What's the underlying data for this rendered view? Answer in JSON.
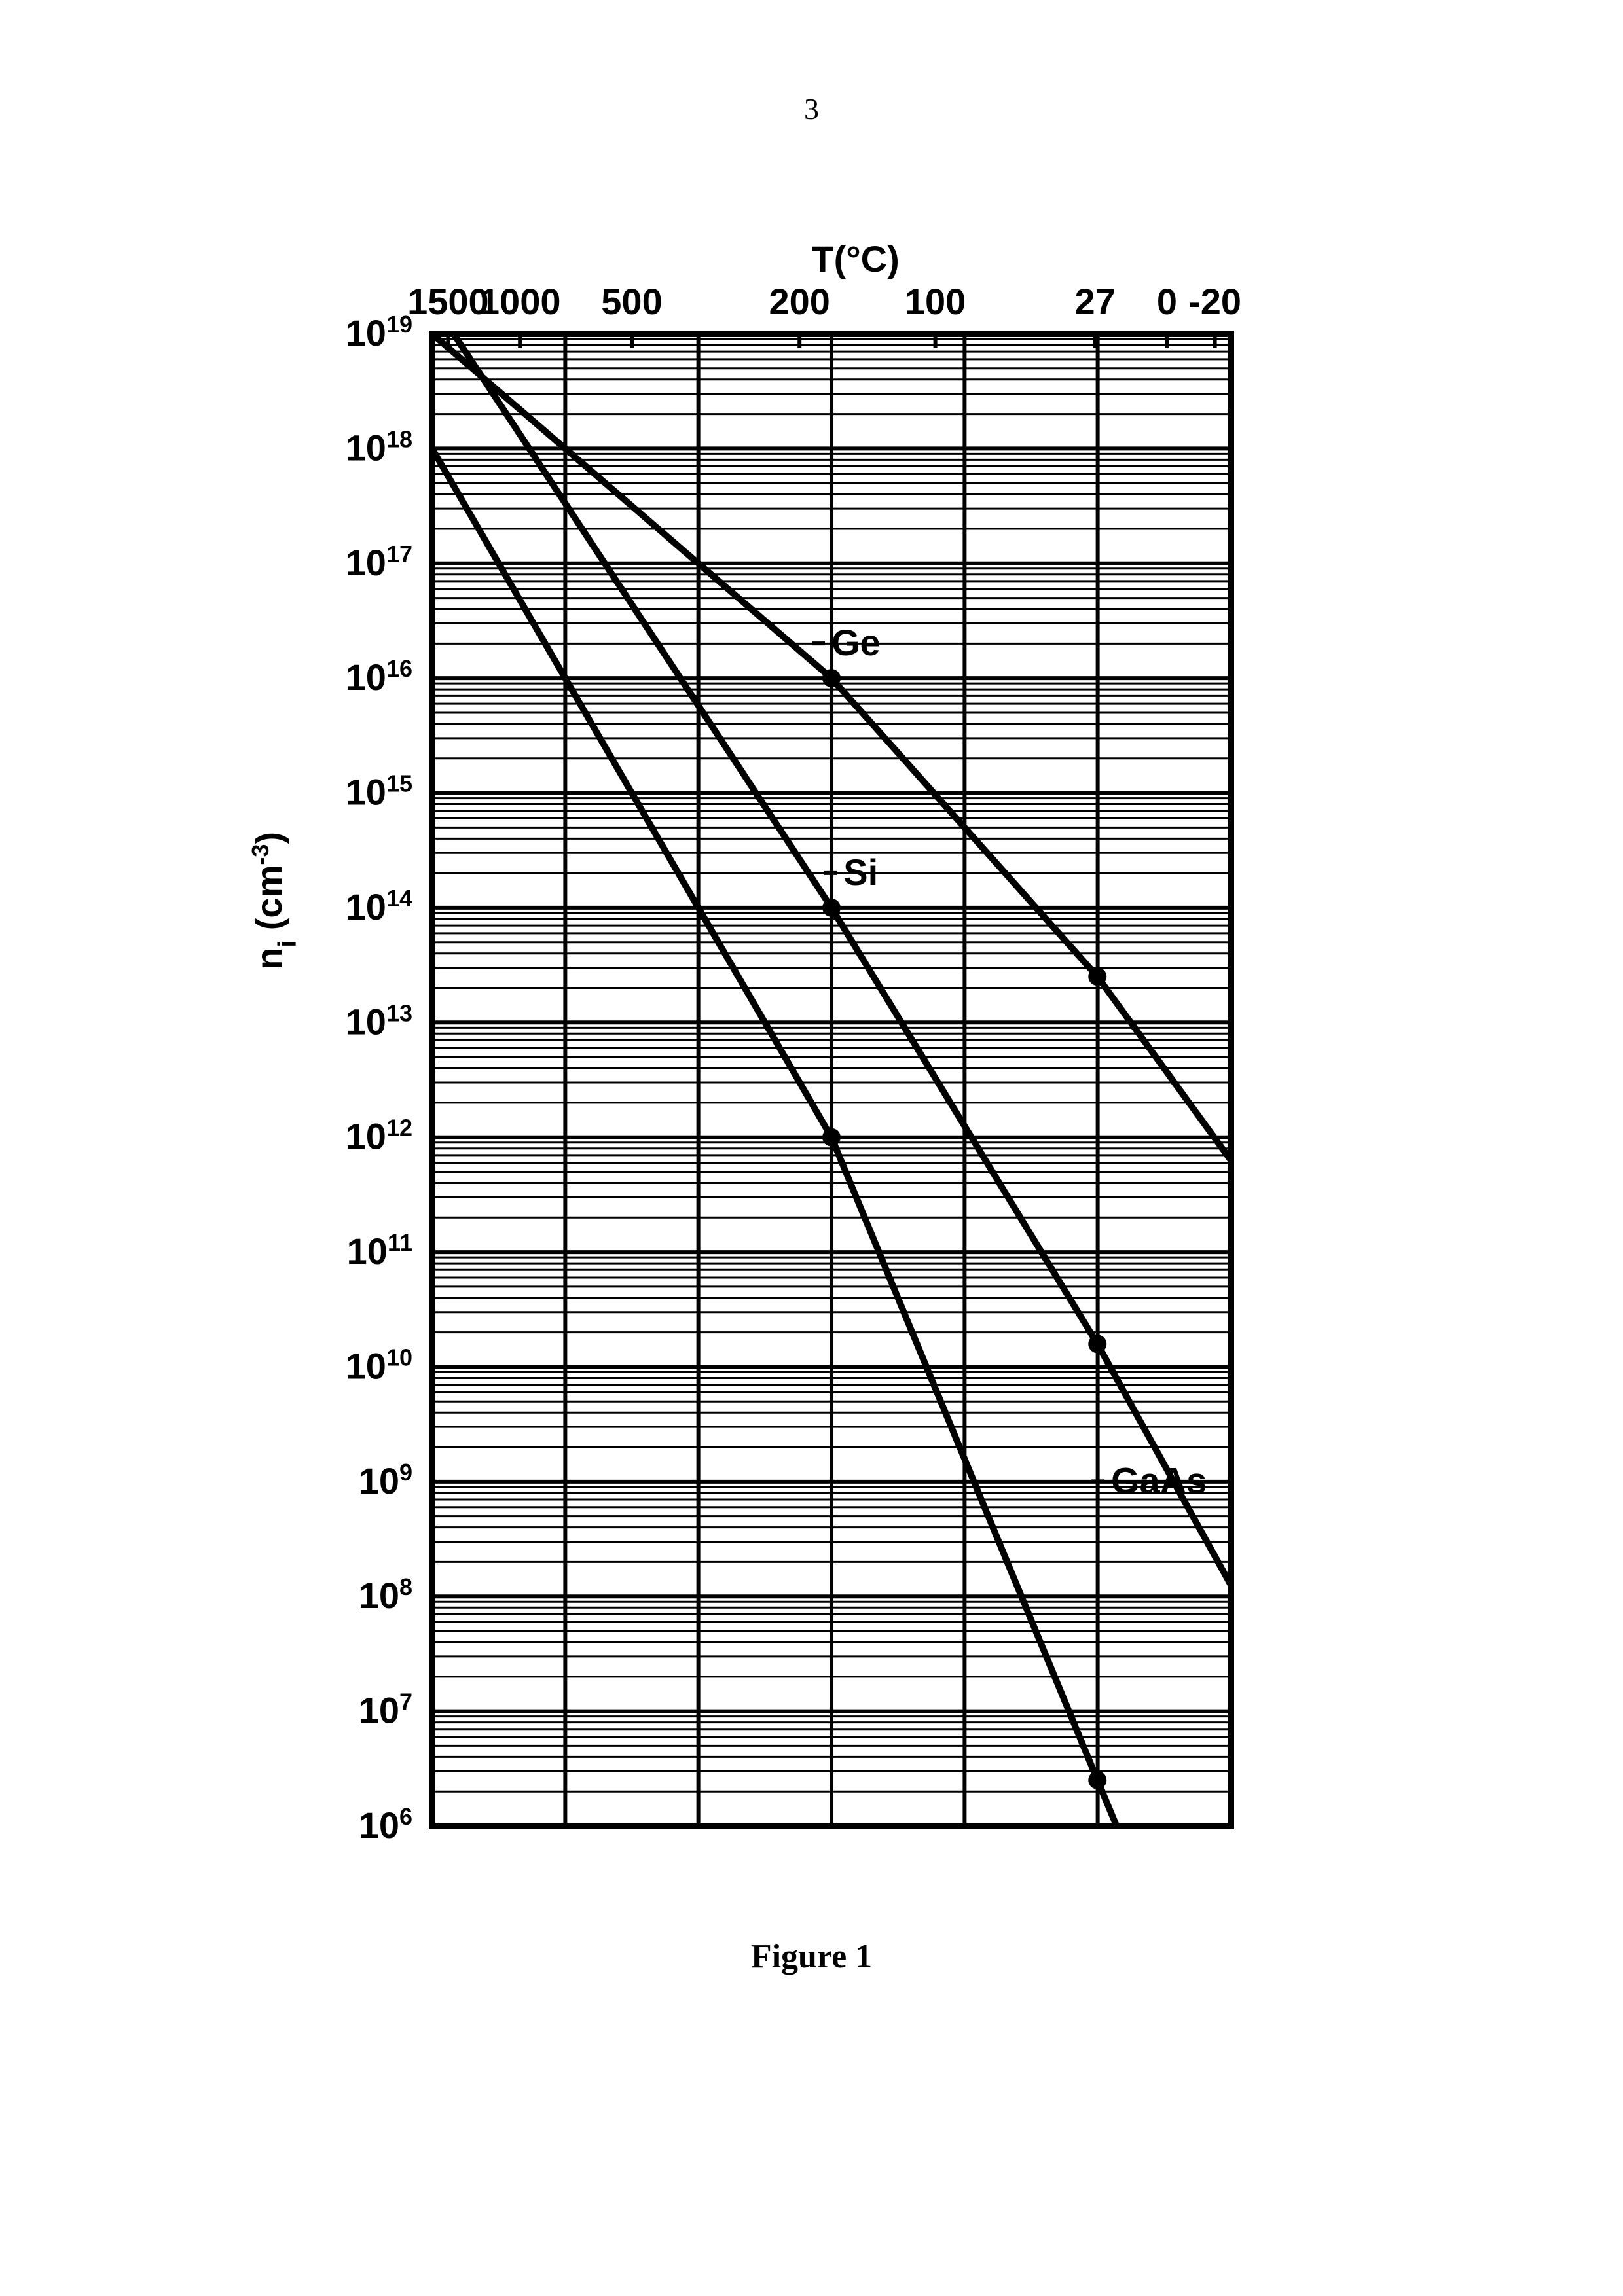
{
  "page_number": "3",
  "caption": "Figure 1",
  "chart": {
    "type": "semilog-line",
    "background_color": "#ffffff",
    "stroke_color": "#000000",
    "line_width_thin": 3,
    "line_width_med": 6,
    "line_width_thick": 10,
    "text_color": "#000000",
    "font_family": "sans-serif",
    "xaxis_top": {
      "title": "T(°C)",
      "title_fontsize": 56,
      "labels": [
        {
          "x": 0.02,
          "text": "1500"
        },
        {
          "x": 0.11,
          "text": "1000"
        },
        {
          "x": 0.25,
          "text": "500"
        },
        {
          "x": 0.46,
          "text": "200"
        },
        {
          "x": 0.63,
          "text": "100"
        },
        {
          "x": 0.83,
          "text": "27"
        },
        {
          "x": 0.92,
          "text": "0"
        },
        {
          "x": 0.98,
          "text": "-20"
        }
      ],
      "label_fontsize": 56,
      "tick_positions": [
        0.02,
        0.11,
        0.25,
        0.46,
        0.63,
        0.83,
        0.92,
        0.98
      ]
    },
    "xgrid_major": [
      0.0,
      0.1667,
      0.3333,
      0.5,
      0.6667,
      0.8333,
      1.0
    ],
    "yaxis": {
      "title": "nᵢ (cm⁻³)",
      "title_fontsize": 56,
      "label_fontsize": 56,
      "log_min_exp": 6,
      "log_max_exp": 19,
      "tick_exps": [
        6,
        7,
        8,
        9,
        10,
        11,
        12,
        13,
        14,
        15,
        16,
        17,
        18,
        19
      ]
    },
    "series": [
      {
        "name": "Ge",
        "label": "Ge",
        "label_pos": {
          "x": 0.5,
          "y_exp": 16.2
        },
        "color": "#000000",
        "line_width": 10,
        "points_exp": [
          {
            "x": 0.0,
            "y": 19.0
          },
          {
            "x": 0.5,
            "y": 16.0
          },
          {
            "x": 0.833,
            "y": 13.4
          },
          {
            "x": 1.0,
            "y": 11.8
          }
        ],
        "markers_exp": [
          {
            "x": 0.833,
            "y": 13.4
          },
          {
            "x": 0.5,
            "y": 16.0
          }
        ],
        "marker_radius": 14
      },
      {
        "name": "Si",
        "label": "Si",
        "label_pos": {
          "x": 0.515,
          "y_exp": 14.2
        },
        "color": "#000000",
        "line_width": 10,
        "points_exp": [
          {
            "x": 0.027,
            "y": 19.0
          },
          {
            "x": 0.5,
            "y": 14.0
          },
          {
            "x": 0.833,
            "y": 10.2
          },
          {
            "x": 1.0,
            "y": 8.1
          }
        ],
        "markers_exp": [
          {
            "x": 0.833,
            "y": 10.2
          },
          {
            "x": 0.5,
            "y": 14.0
          }
        ],
        "marker_radius": 14
      },
      {
        "name": "GaAs",
        "label": "GaAs",
        "label_pos": {
          "x": 0.85,
          "y_exp": 8.9
        },
        "color": "#000000",
        "line_width": 10,
        "points_exp": [
          {
            "x": 0.0,
            "y": 18.0
          },
          {
            "x": 0.5,
            "y": 12.0
          },
          {
            "x": 0.833,
            "y": 6.4
          },
          {
            "x": 0.857,
            "y": 6.0
          }
        ],
        "markers_exp": [
          {
            "x": 0.833,
            "y": 6.4
          },
          {
            "x": 0.5,
            "y": 12.0
          }
        ],
        "marker_radius": 14
      }
    ]
  }
}
